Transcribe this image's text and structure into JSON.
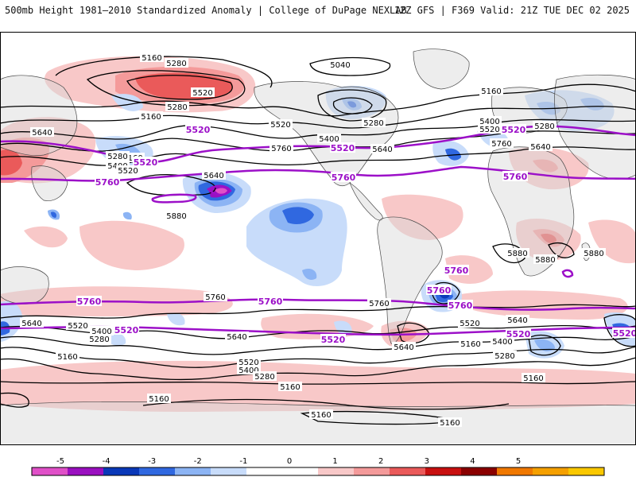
{
  "header": {
    "title": "500mb Height 1981–2010 Standardized Anomaly | College of DuPage NEXLAB",
    "run_info": "12Z GFS | F369 Valid: 21Z TUE DEC 02 2025"
  },
  "contour_labels": {
    "black": [
      "5160",
      "5280",
      "5520",
      "5040",
      "5160",
      "5280",
      "5160",
      "5280",
      "5520",
      "5400",
      "5640",
      "5640",
      "5160",
      "5280",
      "5400",
      "5520",
      "5640",
      "5760",
      "5880",
      "5880",
      "5640",
      "5520",
      "5400",
      "5280",
      "5760",
      "5760",
      "5640",
      "5520",
      "5400",
      "5280",
      "5160",
      "5640",
      "5520",
      "5400",
      "5280",
      "5160",
      "5760",
      "5640",
      "5520",
      "5400",
      "5280",
      "5160",
      "5160",
      "5160",
      "5160",
      "5640",
      "5880",
      "5880",
      "5160"
    ],
    "highlight": [
      "5520",
      "5760",
      "5520",
      "5760",
      "5520",
      "5760",
      "5760",
      "5760",
      "5760",
      "5520",
      "5520",
      "5520",
      "5520",
      "5520",
      "5760",
      "5760"
    ]
  },
  "legend": {
    "ticks": [
      "-5",
      "-4",
      "-3",
      "-2",
      "-1",
      "0",
      "1",
      "2",
      "3",
      "4",
      "5"
    ],
    "colors": [
      "#e050c8",
      "#9a10c0",
      "#0a38b8",
      "#3068e0",
      "#8cb4f4",
      "#c8dcfa",
      "#ffffff",
      "#ffffff",
      "#f8c8c8",
      "#f49a9a",
      "#ea5a5a",
      "#c81010",
      "#8a0000",
      "#f07800",
      "#f5a000",
      "#fac800"
    ]
  },
  "colors": {
    "land": "#d7d7d7",
    "coast": "#4a4a4a",
    "contour": "#000000",
    "highlight": "#9c10c8"
  }
}
